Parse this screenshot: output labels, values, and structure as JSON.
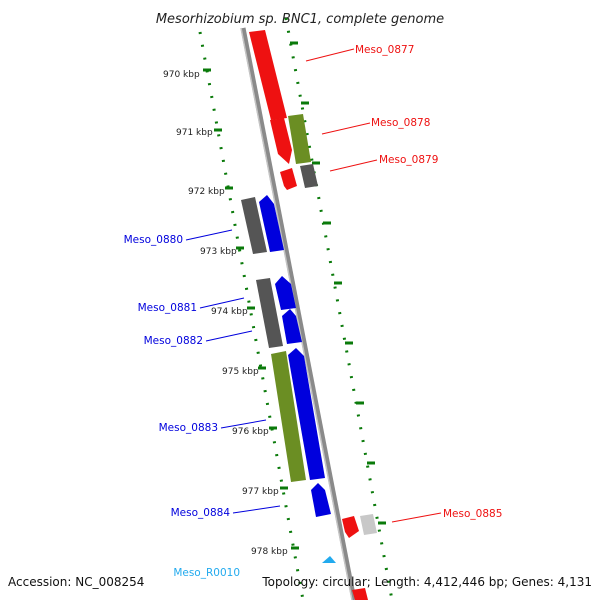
{
  "title": "Mesorhizobium sp. BNC1, complete genome",
  "footer": {
    "accession": "Accession: NC_008254",
    "summary": "Topology: circular; Length: 4,412,446 bp; Genes: 4,131"
  },
  "kbp_labels": [
    "970 kbp",
    "971 kbp",
    "972 kbp",
    "973 kbp",
    "974 kbp",
    "975 kbp",
    "976 kbp",
    "977 kbp",
    "978 kbp"
  ],
  "colors": {
    "red": "#ee1111",
    "blue": "#0000dd",
    "olive": "#6b8e23",
    "gray": "#555555",
    "lightgray": "#c8c8c8",
    "cyan": "#22aaee",
    "track": "#0a7a0a",
    "axis": "#888888"
  },
  "genes": [
    {
      "name": "Meso_0877",
      "color": "red"
    },
    {
      "name": "Meso_0878",
      "color": "red"
    },
    {
      "name": "Meso_0879",
      "color": "red"
    },
    {
      "name": "Meso_0880",
      "color": "blue"
    },
    {
      "name": "Meso_0881",
      "color": "blue"
    },
    {
      "name": "Meso_0882",
      "color": "blue"
    },
    {
      "name": "Meso_0883",
      "color": "blue"
    },
    {
      "name": "Meso_0884",
      "color": "blue"
    },
    {
      "name": "Meso_0885",
      "color": "red"
    },
    {
      "name": "Meso_R0010",
      "color": "cyan"
    }
  ]
}
